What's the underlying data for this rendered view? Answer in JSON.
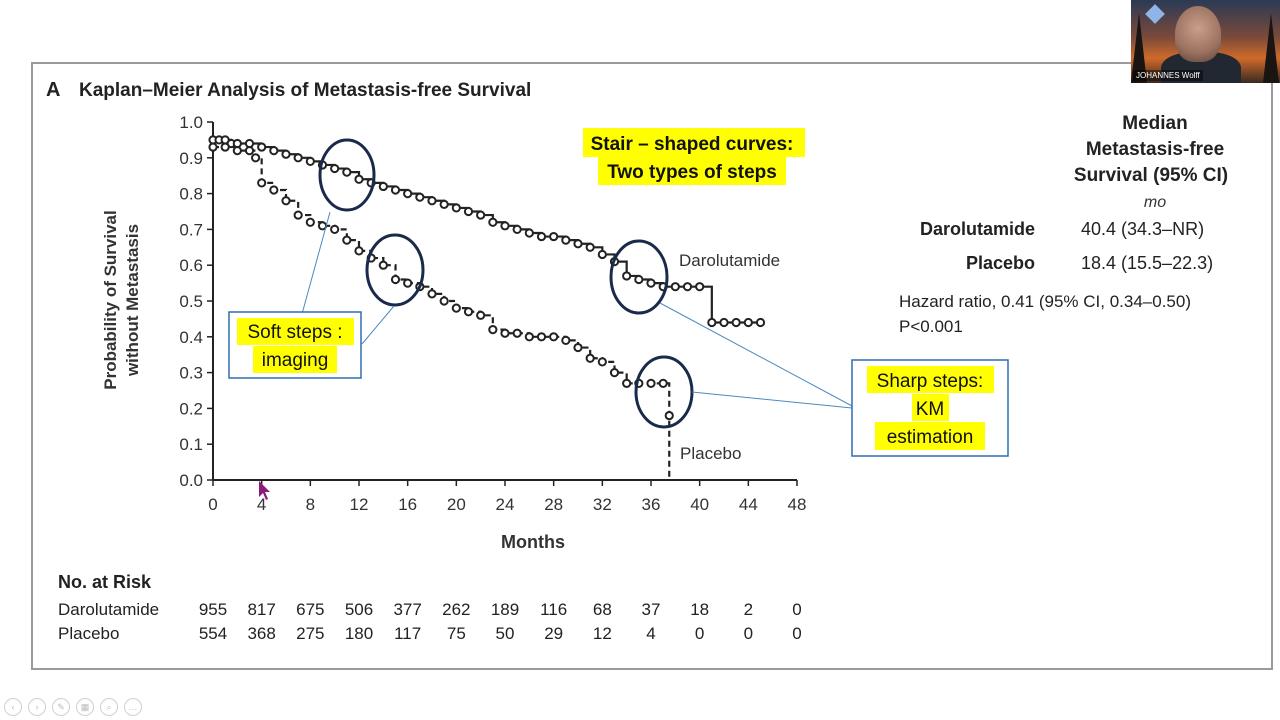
{
  "panel_label": "A",
  "title": "Kaplan–Meier Analysis of Metastasis-free Survival",
  "colors": {
    "frame": "#9a9a9a",
    "highlight": "#ffff00",
    "ellipse": "#1a2a4a",
    "callout_border": "#2f6fb0",
    "cursor": "#8b1a7a"
  },
  "chart_data": {
    "type": "line",
    "xlabel": "Months",
    "ylabel": "Probability of Survival without Metastasis",
    "ylabel_lines": [
      "Probability of Survival",
      "without Metastasis"
    ],
    "xlim": [
      0,
      48
    ],
    "ylim": [
      0,
      1.0
    ],
    "xticks": [
      "0",
      "4",
      "8",
      "12",
      "16",
      "20",
      "24",
      "28",
      "32",
      "36",
      "40",
      "44",
      "48"
    ],
    "yticks": [
      "0.0",
      "0.1",
      "0.2",
      "0.3",
      "0.4",
      "0.5",
      "0.6",
      "0.7",
      "0.8",
      "0.9",
      "1.0"
    ],
    "series": [
      {
        "name": "Darolutamide",
        "style": "solid",
        "x": [
          0,
          0.5,
          1,
          1.5,
          2,
          3,
          4,
          5,
          6,
          7,
          8,
          9,
          10,
          11,
          12,
          13,
          14,
          15,
          16,
          17,
          18,
          19,
          20,
          21,
          22,
          23,
          24,
          25,
          26,
          27,
          28,
          29,
          30,
          31,
          32,
          33,
          34,
          35,
          36,
          37,
          38,
          39,
          40,
          41,
          42,
          43,
          44,
          45
        ],
        "y": [
          0.95,
          0.95,
          0.95,
          0.94,
          0.94,
          0.94,
          0.93,
          0.92,
          0.91,
          0.9,
          0.89,
          0.88,
          0.87,
          0.86,
          0.84,
          0.83,
          0.82,
          0.81,
          0.8,
          0.79,
          0.78,
          0.77,
          0.76,
          0.75,
          0.74,
          0.72,
          0.71,
          0.7,
          0.69,
          0.68,
          0.68,
          0.67,
          0.66,
          0.65,
          0.63,
          0.61,
          0.57,
          0.56,
          0.55,
          0.54,
          0.54,
          0.54,
          0.54,
          0.44,
          0.44,
          0.44,
          0.44,
          0.44
        ]
      },
      {
        "name": "Placebo",
        "style": "dashed",
        "x": [
          0,
          1,
          2,
          3,
          3.5,
          4,
          5,
          6,
          7,
          8,
          9,
          10,
          11,
          12,
          13,
          14,
          15,
          16,
          17,
          18,
          19,
          20,
          21,
          22,
          23,
          24,
          25,
          26,
          27,
          28,
          29,
          30,
          31,
          32,
          33,
          34,
          35,
          36,
          37,
          37.5,
          37.5
        ],
        "y": [
          0.93,
          0.93,
          0.92,
          0.92,
          0.9,
          0.83,
          0.81,
          0.78,
          0.74,
          0.72,
          0.71,
          0.7,
          0.67,
          0.64,
          0.62,
          0.6,
          0.56,
          0.55,
          0.54,
          0.52,
          0.5,
          0.48,
          0.47,
          0.46,
          0.42,
          0.41,
          0.41,
          0.4,
          0.4,
          0.4,
          0.39,
          0.37,
          0.34,
          0.33,
          0.3,
          0.27,
          0.27,
          0.27,
          0.27,
          0.18,
          0.0
        ]
      }
    ],
    "series_labels": [
      "Darolutamide",
      "Placebo"
    ]
  },
  "legend_table": {
    "header": [
      "Median",
      "Metastasis-free",
      "Survival (95% CI)"
    ],
    "unit": "mo",
    "rows": [
      {
        "name": "Darolutamide",
        "value": "40.4 (34.3–NR)"
      },
      {
        "name": "Placebo",
        "value": "18.4 (15.5–22.3)"
      }
    ],
    "hazard": "Hazard ratio, 0.41 (95% CI, 0.34–0.50)",
    "pvalue": "P<0.001"
  },
  "at_risk": {
    "title": "No. at Risk",
    "rows": [
      {
        "name": "Darolutamide",
        "values": [
          "955",
          "817",
          "675",
          "506",
          "377",
          "262",
          "189",
          "116",
          "68",
          "37",
          "18",
          "2",
          "0"
        ]
      },
      {
        "name": "Placebo",
        "values": [
          "554",
          "368",
          "275",
          "180",
          "117",
          "75",
          "50",
          "29",
          "12",
          "4",
          "0",
          "0",
          "0"
        ]
      }
    ]
  },
  "annotations": {
    "top_title_line1": "Stair – shaped curves:",
    "top_title_line2": "Two types of steps",
    "soft_line1": "Soft steps :",
    "soft_line2": "imaging",
    "sharp_line1": "Sharp steps:",
    "sharp_line2": "KM",
    "sharp_line3": "estimation"
  },
  "webcam": {
    "name": "JOHANNES Wolff",
    "icon": "app-badge-icon"
  }
}
